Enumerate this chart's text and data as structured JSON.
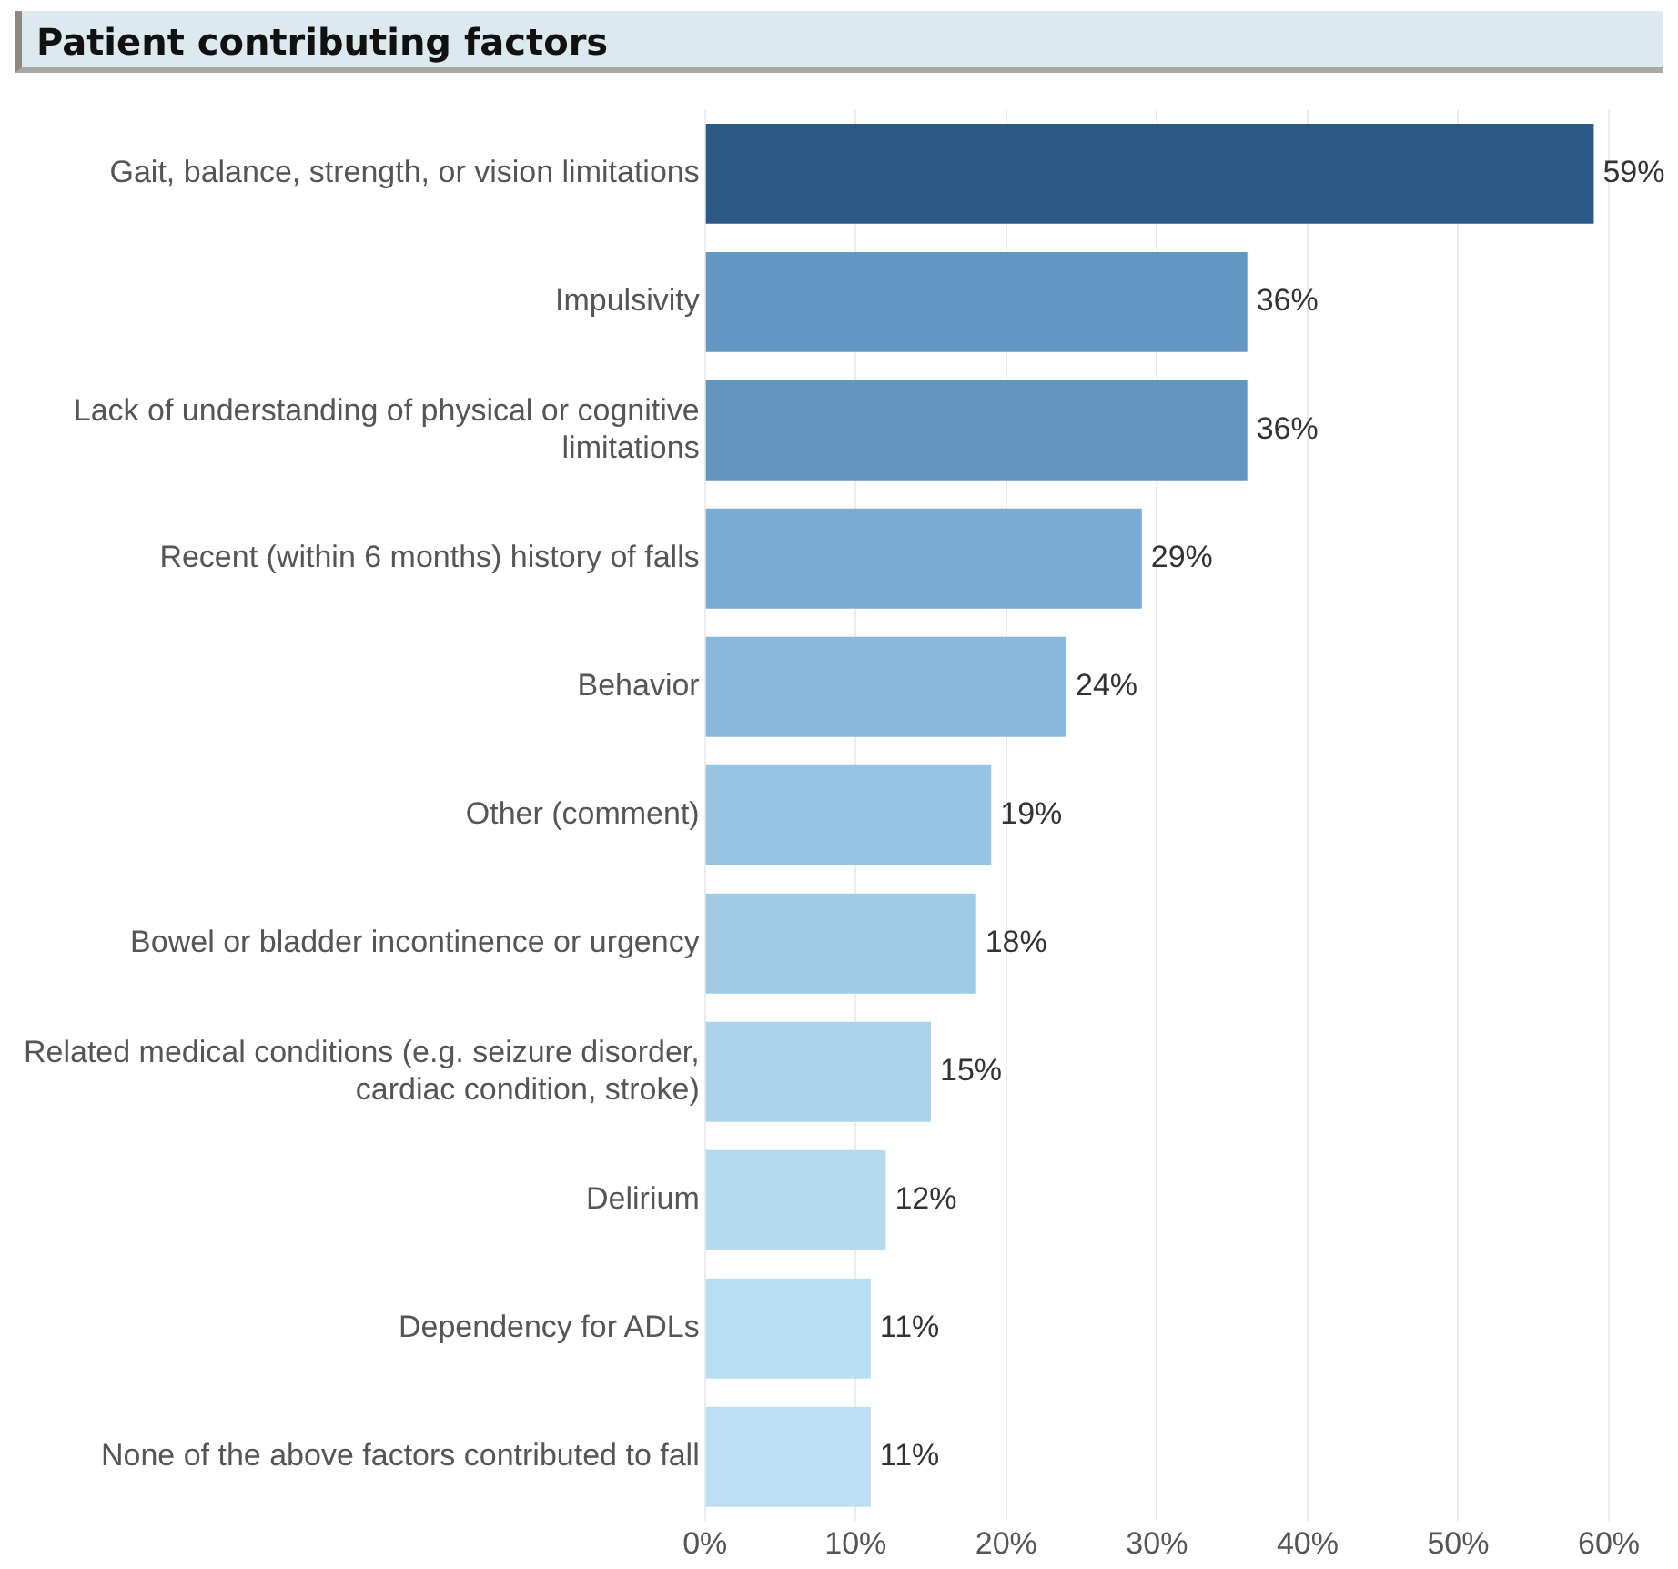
{
  "chart_data": {
    "type": "bar",
    "orientation": "horizontal",
    "title": "Patient contributing factors",
    "categories": [
      "Gait, balance, strength, or vision limitations",
      "Impulsivity",
      "Lack of understanding of physical or cognitive limitations",
      "Recent (within 6 months) history of falls",
      "Behavior",
      "Other (comment)",
      "Bowel or bladder incontinence or urgency",
      "Related medical conditions (e.g. seizure disorder, cardiac condition, stroke)",
      "Delirium",
      "Dependency for ADLs",
      "None of the above factors contributed to fall"
    ],
    "values": [
      59,
      36,
      36,
      29,
      24,
      19,
      18,
      15,
      12,
      11,
      11
    ],
    "colors": [
      "#2b5985",
      "#6298c3",
      "#6296c1",
      "#79acd4",
      "#88b9dc",
      "#96c4e4",
      "#9fcbe7",
      "#aad3ec",
      "#b5daf0",
      "#b9ddf2",
      "#bcdff3"
    ],
    "value_labels": [
      "59%",
      "36%",
      "36%",
      "29%",
      "24%",
      "19%",
      "18%",
      "15%",
      "12%",
      "11%",
      "11%"
    ],
    "xlim": [
      0,
      60
    ],
    "xticks": [
      {
        "value": 0,
        "label": "0%"
      },
      {
        "value": 10,
        "label": "10%"
      },
      {
        "value": 20,
        "label": "20%"
      },
      {
        "value": 30,
        "label": "30%"
      },
      {
        "value": 40,
        "label": "40%"
      },
      {
        "value": 50,
        "label": "50%"
      },
      {
        "value": 60,
        "label": "60%"
      }
    ],
    "grid": "x",
    "legend": false
  }
}
